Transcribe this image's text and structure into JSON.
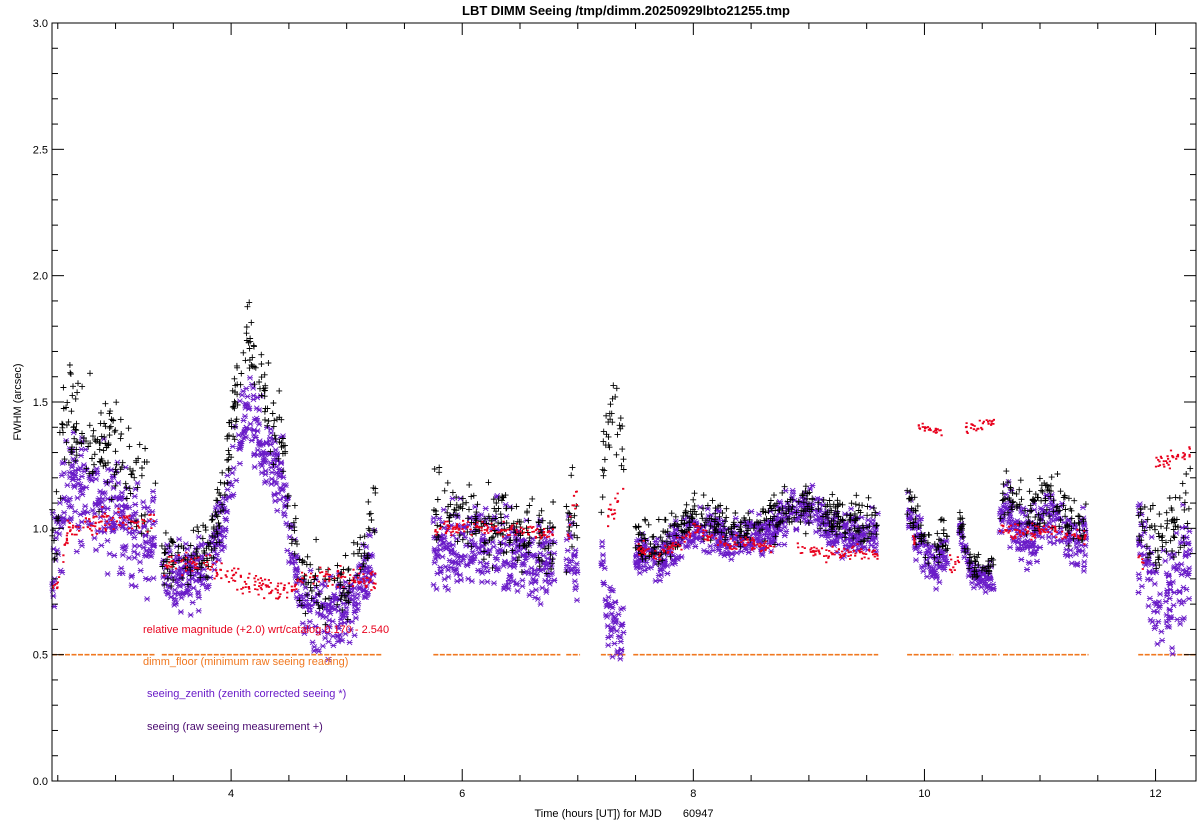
{
  "chart_data": {
    "type": "scatter",
    "title": "LBT DIMM Seeing  /tmp/dimm.20250929lbto21255.tmp",
    "xlabel": "Time (hours [UT]) for MJD",
    "mjd": "60947",
    "ylabel": "FWHM (arcsec)",
    "xlim": [
      2.45,
      12.35
    ],
    "ylim": [
      0.0,
      3.0
    ],
    "x_ticks": [
      {
        "value": 4,
        "label": "4"
      },
      {
        "value": 6,
        "label": "6"
      },
      {
        "value": 8,
        "label": "8"
      },
      {
        "value": 10,
        "label": "10"
      },
      {
        "value": 12,
        "label": "12"
      }
    ],
    "y_ticks": [
      {
        "value": 0.0,
        "label": "0.0"
      },
      {
        "value": 0.5,
        "label": "0.5"
      },
      {
        "value": 1.0,
        "label": "1.0"
      },
      {
        "value": 1.5,
        "label": "1.5"
      },
      {
        "value": 2.0,
        "label": "2.0"
      },
      {
        "value": 2.5,
        "label": "2.5"
      },
      {
        "value": 3.0,
        "label": "3.0"
      }
    ],
    "legend": {
      "placement": "lower-left",
      "entries": [
        {
          "label": "relative magnitude (+2.0) wrt/catalog  0.170 -  2.540",
          "color": "#e8001c"
        },
        {
          "label": "dimm_floor  (minimum raw seeing reading)",
          "color": "#f07820"
        },
        {
          "label": "seeing_zenith (zenith corrected seeing *)",
          "color": "#6a1cc8"
        },
        {
          "label": "seeing  (raw seeing measurement +)",
          "color": "#4a0a70"
        }
      ]
    },
    "series": [
      {
        "name": "seeing_zenith",
        "marker": "*",
        "color": "#6a1cc8",
        "segments": [
          {
            "x": [
              2.45,
              2.5,
              2.55,
              2.6,
              2.7,
              2.8,
              2.9,
              3.0,
              3.1,
              3.2,
              3.3,
              3.35
            ],
            "y": [
              0.88,
              0.95,
              1.1,
              1.18,
              1.15,
              1.12,
              1.1,
              1.05,
              1.0,
              0.98,
              0.95,
              0.94
            ],
            "spread": 0.15
          },
          {
            "x": [
              3.4,
              3.5,
              3.6,
              3.7,
              3.8,
              3.9,
              4.0,
              4.1,
              4.15,
              4.2,
              4.3,
              4.4,
              4.45,
              4.5,
              4.6,
              4.7,
              4.8,
              4.9,
              5.0,
              5.1,
              5.2,
              5.25
            ],
            "y": [
              0.82,
              0.8,
              0.8,
              0.82,
              0.85,
              0.95,
              1.2,
              1.4,
              1.5,
              1.4,
              1.3,
              1.25,
              1.2,
              0.95,
              0.75,
              0.68,
              0.65,
              0.65,
              0.68,
              0.75,
              0.85,
              0.9
            ],
            "spread": 0.1
          },
          {
            "x": [
              5.75,
              5.9,
              6.0,
              6.2,
              6.4,
              6.6,
              6.8
            ],
            "y": [
              0.92,
              0.94,
              0.93,
              0.92,
              0.9,
              0.88,
              0.88
            ],
            "spread": 0.12
          },
          {
            "x": [
              6.9,
              6.95,
              7.0
            ],
            "y": [
              0.88,
              0.92,
              0.78
            ],
            "spread": 0.1
          },
          {
            "x": [
              7.2,
              7.25,
              7.3,
              7.35,
              7.4
            ],
            "y": [
              0.9,
              0.7,
              0.6,
              0.58,
              0.62
            ],
            "spread": 0.1
          },
          {
            "x": [
              7.5,
              7.6,
              7.7,
              7.8,
              7.9,
              8.0,
              8.1,
              8.2,
              8.3,
              8.4,
              8.6,
              8.8,
              9.0,
              9.1,
              9.2,
              9.4,
              9.6
            ],
            "y": [
              0.9,
              0.9,
              0.88,
              0.92,
              0.95,
              1.0,
              1.0,
              0.98,
              0.95,
              0.95,
              0.98,
              1.05,
              1.08,
              1.05,
              1.0,
              0.98,
              0.98
            ],
            "spread": 0.06
          },
          {
            "x": [
              9.85,
              9.9,
              9.95,
              10.0,
              10.1,
              10.2
            ],
            "y": [
              1.05,
              1.0,
              0.95,
              0.9,
              0.85,
              0.9
            ],
            "spread": 0.06
          },
          {
            "x": [
              10.3,
              10.4,
              10.5,
              10.6
            ],
            "y": [
              1.0,
              0.82,
              0.8,
              0.8
            ],
            "spread": 0.04
          },
          {
            "x": [
              10.65,
              10.7,
              10.8,
              10.9,
              11.0,
              11.1,
              11.2,
              11.3,
              11.4
            ],
            "y": [
              1.0,
              1.1,
              1.0,
              0.95,
              1.0,
              1.05,
              1.0,
              0.95,
              0.95
            ],
            "spread": 0.08
          },
          {
            "x": [
              11.85,
              11.9,
              12.0,
              12.1,
              12.2,
              12.3
            ],
            "y": [
              0.95,
              0.9,
              0.7,
              0.75,
              0.8,
              0.9
            ],
            "spread": 0.15
          }
        ]
      },
      {
        "name": "seeing",
        "marker": "+",
        "color": "#000000",
        "segments": [
          {
            "x": [
              2.45,
              2.5,
              2.55,
              2.6,
              2.7,
              2.8,
              2.9,
              3.0,
              3.1,
              3.2,
              3.3,
              3.35
            ],
            "y": [
              0.92,
              1.05,
              1.4,
              1.45,
              1.4,
              1.35,
              1.3,
              1.28,
              1.25,
              1.2,
              1.18,
              1.15
            ],
            "spread": 0.15
          },
          {
            "x": [
              3.4,
              3.5,
              3.6,
              3.7,
              3.8,
              3.9,
              4.0,
              4.1,
              4.15,
              4.2,
              4.3,
              4.4,
              4.45,
              4.5,
              4.6,
              4.7,
              4.8,
              4.9,
              5.0,
              5.1,
              5.2,
              5.25
            ],
            "y": [
              0.88,
              0.85,
              0.86,
              0.88,
              0.92,
              1.05,
              1.4,
              1.65,
              1.8,
              1.65,
              1.5,
              1.4,
              1.35,
              1.05,
              0.85,
              0.78,
              0.76,
              0.76,
              0.78,
              0.85,
              1.0,
              1.1
            ],
            "spread": 0.1
          },
          {
            "x": [
              5.75,
              5.9,
              6.0,
              6.2,
              6.4,
              6.6,
              6.8
            ],
            "y": [
              1.05,
              1.08,
              1.05,
              1.02,
              1.0,
              0.98,
              0.97
            ],
            "spread": 0.1
          },
          {
            "x": [
              6.9,
              6.95,
              7.0
            ],
            "y": [
              1.0,
              1.1,
              0.9
            ],
            "spread": 0.1
          },
          {
            "x": [
              7.2,
              7.25,
              7.3,
              7.35,
              7.4
            ],
            "y": [
              1.2,
              1.35,
              1.45,
              1.4,
              1.3
            ],
            "spread": 0.12
          },
          {
            "x": [
              7.5,
              7.6,
              7.7,
              7.8,
              7.9,
              8.0,
              8.1,
              8.2,
              8.3,
              8.4,
              8.6,
              8.8,
              9.0,
              9.1,
              9.2,
              9.4,
              9.6
            ],
            "y": [
              0.95,
              0.95,
              0.93,
              0.97,
              1.0,
              1.05,
              1.05,
              1.02,
              1.0,
              1.0,
              1.02,
              1.08,
              1.1,
              1.08,
              1.04,
              1.02,
              1.02
            ],
            "spread": 0.06
          },
          {
            "x": [
              9.85,
              9.9,
              9.95,
              10.0,
              10.1,
              10.2
            ],
            "y": [
              1.1,
              1.05,
              1.0,
              0.95,
              0.92,
              0.95
            ],
            "spread": 0.06
          },
          {
            "x": [
              10.3,
              10.4,
              10.5,
              10.6
            ],
            "y": [
              1.05,
              0.86,
              0.85,
              0.85
            ],
            "spread": 0.04
          },
          {
            "x": [
              10.65,
              10.7,
              10.8,
              10.9,
              11.0,
              11.1,
              11.2,
              11.3,
              11.4
            ],
            "y": [
              1.05,
              1.15,
              1.08,
              1.05,
              1.1,
              1.15,
              1.08,
              1.02,
              1.0
            ],
            "spread": 0.08
          },
          {
            "x": [
              11.85,
              11.9,
              12.0,
              12.1,
              12.2,
              12.3
            ],
            "y": [
              1.05,
              1.0,
              0.9,
              1.0,
              1.05,
              1.15
            ],
            "spread": 0.12
          }
        ]
      },
      {
        "name": "relative magnitude",
        "marker": ".",
        "color": "#e8001c",
        "segments": [
          {
            "x": [
              2.45,
              2.5,
              2.6,
              2.8,
              3.0,
              3.2,
              3.35
            ],
            "y": [
              0.75,
              0.8,
              1.0,
              1.02,
              1.03,
              1.02,
              1.03
            ],
            "spread": 0.03
          },
          {
            "x": [
              3.4,
              3.6,
              3.8,
              3.9,
              4.0,
              4.2,
              4.4,
              4.5,
              4.6,
              4.8,
              5.0,
              5.2,
              5.25
            ],
            "y": [
              0.86,
              0.86,
              0.87,
              0.83,
              0.8,
              0.78,
              0.76,
              0.76,
              0.8,
              0.81,
              0.81,
              0.8,
              0.8
            ],
            "spread": 0.03
          },
          {
            "x": [
              5.75,
              6.0,
              6.2,
              6.4,
              6.6,
              6.8
            ],
            "y": [
              1.0,
              1.0,
              1.0,
              0.99,
              0.99,
              0.98
            ],
            "spread": 0.02
          },
          {
            "x": [
              6.9,
              6.95,
              7.0
            ],
            "y": [
              0.95,
              1.08,
              1.15
            ],
            "spread": 0.04
          },
          {
            "x": [
              7.25,
              7.3,
              7.35,
              7.4
            ],
            "y": [
              1.05,
              1.1,
              1.12,
              1.1
            ],
            "spread": 0.04
          },
          {
            "x": [
              7.5,
              7.7,
              7.9,
              8.0,
              8.1,
              8.2,
              8.3,
              8.5,
              8.7
            ],
            "y": [
              0.92,
              0.9,
              0.95,
              1.0,
              0.98,
              0.96,
              0.94,
              0.94,
              0.93
            ],
            "spread": 0.02
          },
          {
            "x": [
              8.9,
              9.1,
              9.3,
              9.6
            ],
            "y": [
              0.92,
              0.9,
              0.9,
              0.9
            ],
            "spread": 0.02
          },
          {
            "x": [
              9.9,
              9.95
            ],
            "y": [
              0.95,
              0.93
            ],
            "spread": 0.02
          },
          {
            "x": [
              9.95,
              10.05,
              10.15
            ],
            "y": [
              1.4,
              1.39,
              1.38
            ],
            "spread": 0.01
          },
          {
            "x": [
              10.2,
              10.3
            ],
            "y": [
              0.85,
              0.86
            ],
            "spread": 0.03
          },
          {
            "x": [
              10.35,
              10.45,
              10.55,
              10.6
            ],
            "y": [
              1.4,
              1.4,
              1.41,
              1.42
            ],
            "spread": 0.015
          },
          {
            "x": [
              10.65,
              10.8,
              11.0,
              11.2,
              11.4
            ],
            "y": [
              1.0,
              0.98,
              0.99,
              0.98,
              0.96
            ],
            "spread": 0.02
          },
          {
            "x": [
              11.85,
              11.9
            ],
            "y": [
              0.88,
              0.87
            ],
            "spread": 0.02
          },
          {
            "x": [
              12.0,
              12.15,
              12.3
            ],
            "y": [
              1.25,
              1.28,
              1.3
            ],
            "spread": 0.02
          }
        ]
      },
      {
        "name": "dimm_floor",
        "marker": "-",
        "color": "#f07820",
        "y_value": 0.5,
        "x_ranges": [
          [
            2.45,
            3.35
          ],
          [
            3.4,
            5.3
          ],
          [
            5.75,
            6.85
          ],
          [
            6.9,
            7.02
          ],
          [
            7.2,
            7.42
          ],
          [
            7.48,
            9.6
          ],
          [
            9.85,
            10.25
          ],
          [
            10.3,
            10.65
          ],
          [
            10.68,
            11.42
          ],
          [
            11.85,
            12.35
          ]
        ]
      }
    ]
  }
}
